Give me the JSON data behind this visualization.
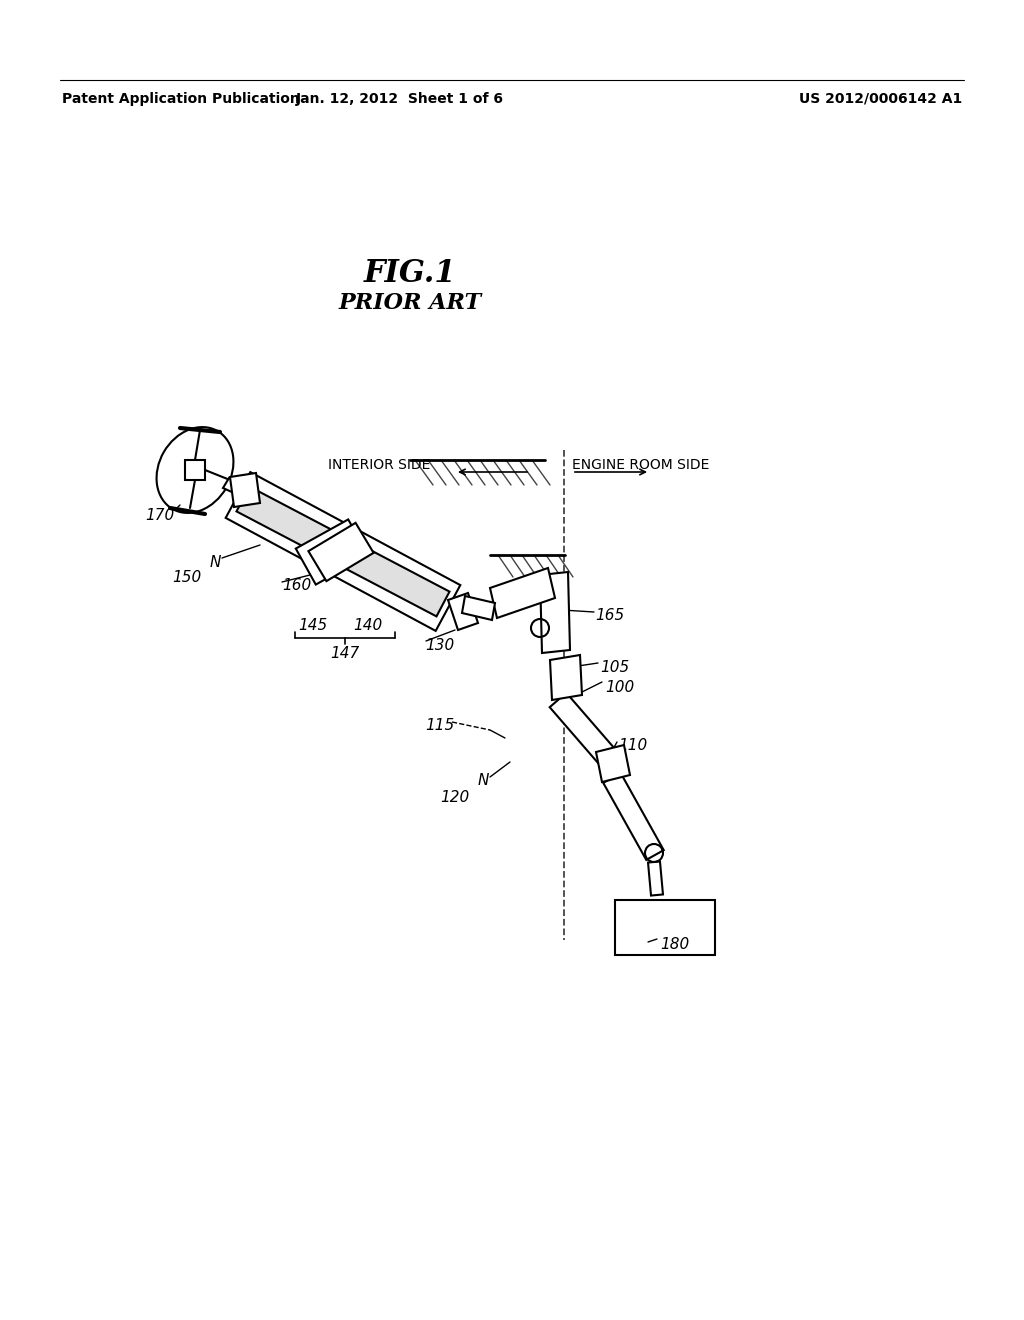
{
  "bg_color": "#ffffff",
  "header_left": "Patent Application Publication",
  "header_mid": "Jan. 12, 2012  Sheet 1 of 6",
  "header_right": "US 2012/0006142 A1",
  "fig_title": "FIG.1",
  "fig_subtitle": "PRIOR ART",
  "label_170": "170",
  "label_150": "150",
  "label_160": "160",
  "label_145": "145",
  "label_140": "140",
  "label_147": "147",
  "label_130": "130",
  "label_165": "165",
  "label_105": "105",
  "label_100": "100",
  "label_110": "110",
  "label_115": "115",
  "label_120": "120",
  "label_180": "180",
  "interior_side": "INTERIOR SIDE",
  "engine_room_side": "ENGINE ROOM SIDE",
  "line_color": "#000000",
  "line_width": 1.5
}
